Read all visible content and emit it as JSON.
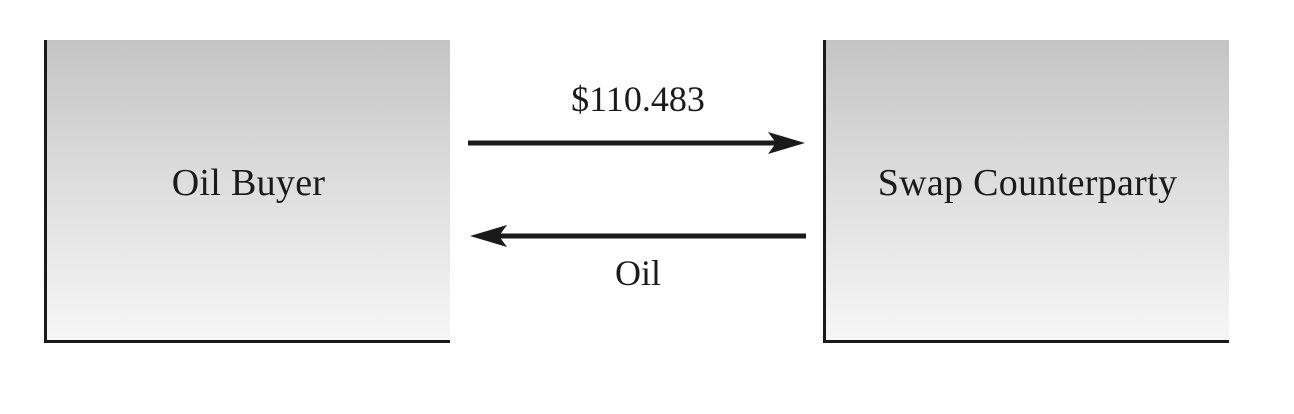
{
  "parties": {
    "left": {
      "label": "Oil Buyer"
    },
    "right": {
      "label": "Swap Counterparty"
    }
  },
  "flows": {
    "payment": {
      "label": "$110.483",
      "from": "Oil Buyer",
      "to": "Swap Counterparty"
    },
    "goods": {
      "label": "Oil",
      "from": "Swap Counterparty",
      "to": "Oil Buyer"
    }
  },
  "colors": {
    "line": "#1a1a1a",
    "box_top": "#c4c4c4",
    "box_bottom": "#f6f6f6"
  }
}
